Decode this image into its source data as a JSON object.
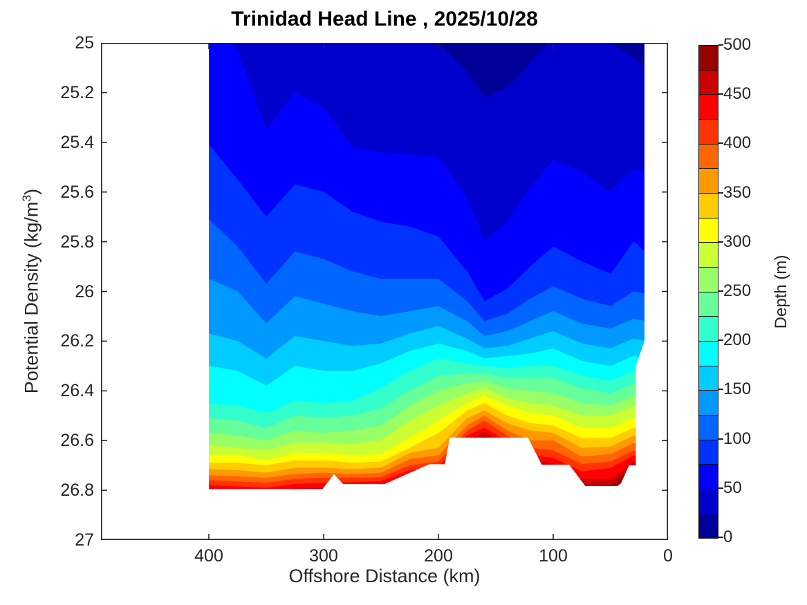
{
  "title": "Trinidad Head Line , 2025/10/28",
  "axis_color": "#262626",
  "chart_data": {
    "type": "filled_contour",
    "title": "Trinidad Head Line , 2025/10/28",
    "xlabel": "Offshore Distance (km)",
    "ylabel": "Potential Density (kg/m³)",
    "ylabel_parts": {
      "main": "Potential Density (kg/m",
      "sup": "3",
      "end": ")"
    },
    "x_axis": {
      "min": 0,
      "max": 494,
      "reversed": true,
      "ticks": [
        400,
        300,
        200,
        100,
        0
      ]
    },
    "y_axis": {
      "min": 25,
      "max": 27,
      "increases_downward": true,
      "ticks": [
        25,
        25.2,
        25.4,
        25.6,
        25.8,
        26,
        26.2,
        26.4,
        26.6,
        26.8,
        27
      ],
      "tick_labels": [
        "25",
        "25.2",
        "25.4",
        "25.6",
        "25.8",
        "26",
        "26.2",
        "26.4",
        "26.6",
        "26.8",
        "27"
      ]
    },
    "colorbar": {
      "label": "Depth (m)",
      "min": 0,
      "max": 500,
      "band_step": 25,
      "ticks": [
        0,
        50,
        100,
        150,
        200,
        250,
        300,
        350,
        400,
        450,
        500
      ],
      "colors": [
        "#000099",
        "#0000CC",
        "#0000FF",
        "#0033FF",
        "#0066FF",
        "#0099FF",
        "#00CCFF",
        "#00FFFF",
        "#33FFCC",
        "#66FF99",
        "#99FF66",
        "#CCFF33",
        "#FFFF00",
        "#FFCC00",
        "#FF9900",
        "#FF6600",
        "#FF3300",
        "#FF0000",
        "#CC0000",
        "#990000"
      ]
    },
    "levels_m": [
      25,
      50,
      75,
      100,
      125,
      150,
      175,
      200,
      225,
      250,
      275,
      300,
      325,
      350,
      375,
      400,
      425,
      450,
      475,
      500
    ],
    "stations_km": [
      400,
      375,
      350,
      325,
      300,
      275,
      250,
      225,
      200,
      175,
      160,
      140,
      120,
      100,
      75,
      50,
      30,
      20
    ],
    "contour_density_by_level": [
      [
        24.85,
        24.88,
        24.92,
        24.9,
        24.9,
        24.9,
        24.93,
        24.96,
        25.0,
        25.12,
        25.22,
        25.18,
        25.08,
        24.98,
        24.95,
        25.0,
        25.06,
        25.1
      ],
      [
        24.9,
        25.03,
        25.35,
        25.2,
        25.26,
        25.42,
        25.44,
        25.45,
        25.46,
        25.62,
        25.8,
        25.72,
        25.58,
        25.47,
        25.52,
        25.6,
        25.51,
        25.52
      ],
      [
        25.41,
        25.55,
        25.7,
        25.57,
        25.6,
        25.68,
        25.72,
        25.74,
        25.78,
        25.92,
        26.04,
        25.99,
        25.9,
        25.82,
        25.88,
        25.93,
        25.8,
        25.84
      ],
      [
        25.71,
        25.82,
        25.97,
        25.84,
        25.87,
        25.92,
        25.95,
        25.95,
        25.95,
        26.04,
        26.12,
        26.09,
        26.03,
        25.98,
        26.03,
        26.06,
        26.0,
        26.01
      ],
      [
        25.95,
        26.0,
        26.13,
        26.02,
        26.05,
        26.08,
        26.1,
        26.08,
        26.06,
        26.12,
        26.18,
        26.16,
        26.12,
        26.08,
        26.13,
        26.15,
        26.11,
        26.12
      ],
      [
        26.17,
        26.2,
        26.27,
        26.18,
        26.2,
        26.22,
        26.21,
        26.17,
        26.14,
        26.19,
        26.23,
        26.22,
        26.19,
        26.16,
        26.21,
        26.23,
        26.19,
        26.2
      ],
      [
        26.3,
        26.32,
        26.38,
        26.3,
        26.32,
        26.32,
        26.29,
        26.24,
        26.21,
        26.24,
        26.27,
        26.26,
        26.25,
        26.23,
        26.28,
        26.3,
        26.26,
        26.27
      ],
      [
        26.45,
        26.46,
        26.49,
        26.44,
        26.45,
        26.44,
        26.39,
        26.32,
        26.27,
        26.29,
        26.3,
        26.31,
        26.3,
        26.3,
        26.34,
        26.36,
        26.32,
        26.33
      ],
      [
        26.51,
        26.52,
        26.55,
        26.5,
        26.51,
        26.5,
        26.47,
        26.4,
        26.34,
        26.33,
        26.33,
        26.35,
        26.35,
        26.35,
        26.39,
        26.41,
        26.37,
        26.38
      ],
      [
        26.57,
        26.58,
        26.6,
        26.56,
        26.57,
        26.56,
        26.54,
        26.46,
        26.4,
        26.37,
        26.36,
        26.39,
        26.4,
        26.41,
        26.45,
        26.46,
        26.42,
        26.43
      ],
      [
        26.62,
        26.63,
        26.64,
        26.61,
        26.61,
        26.615,
        26.6,
        26.52,
        26.46,
        26.41,
        26.39,
        26.43,
        26.45,
        26.46,
        26.5,
        26.5,
        26.46,
        26.47
      ],
      [
        26.66,
        26.66,
        26.68,
        26.65,
        26.65,
        26.66,
        26.655,
        26.59,
        26.52,
        26.45,
        26.42,
        26.46,
        26.49,
        26.5,
        26.55,
        26.55,
        26.51,
        26.51
      ],
      [
        26.69,
        26.69,
        26.7,
        26.68,
        26.68,
        26.69,
        26.685,
        26.63,
        26.57,
        26.48,
        26.45,
        26.5,
        26.53,
        26.54,
        26.59,
        26.59,
        26.55,
        26.55
      ],
      [
        26.715,
        26.72,
        26.73,
        26.71,
        26.71,
        26.715,
        26.71,
        26.65,
        26.63,
        26.51,
        26.48,
        26.53,
        26.56,
        26.57,
        26.63,
        26.625,
        26.58,
        26.59
      ],
      [
        26.74,
        26.745,
        26.75,
        26.735,
        26.73,
        26.735,
        26.73,
        26.675,
        26.66,
        26.54,
        26.5,
        26.56,
        26.6,
        26.6,
        26.665,
        26.655,
        26.61,
        26.62
      ],
      [
        26.76,
        26.765,
        26.77,
        26.755,
        26.75,
        26.75,
        26.748,
        26.7,
        26.685,
        26.56,
        26.52,
        26.58,
        26.63,
        26.64,
        26.695,
        26.685,
        26.64,
        26.65
      ],
      [
        26.78,
        26.785,
        26.79,
        26.775,
        26.77,
        26.768,
        26.763,
        26.72,
        26.705,
        26.58,
        26.548,
        26.605,
        26.66,
        26.67,
        26.725,
        26.71,
        26.66,
        26.67
      ],
      [
        26.795,
        26.8,
        26.805,
        26.795,
        26.79,
        26.78,
        26.776,
        26.74,
        26.725,
        26.6,
        26.566,
        26.62,
        26.685,
        26.69,
        26.755,
        26.755,
        26.685,
        26.69
      ],
      [
        26.82,
        26.83,
        26.83,
        26.82,
        26.81,
        26.795,
        26.79,
        26.76,
        26.745,
        26.62,
        26.582,
        26.64,
        26.71,
        26.72,
        26.785,
        26.78,
        26.71,
        26.71
      ],
      [
        26.85,
        26.86,
        26.86,
        26.85,
        26.84,
        26.81,
        26.805,
        26.78,
        26.765,
        26.64,
        26.596,
        26.66,
        26.73,
        26.75,
        26.81,
        26.805,
        26.73,
        26.73
      ]
    ],
    "data_boundary_km_sigma": [
      [
        400,
        24.5
      ],
      [
        20.5,
        24.5
      ],
      [
        20.5,
        26.2
      ],
      [
        28,
        26.3
      ],
      [
        28,
        26.7
      ],
      [
        34,
        26.7
      ],
      [
        42,
        26.783
      ],
      [
        72,
        26.783
      ],
      [
        86,
        26.697
      ],
      [
        110,
        26.697
      ],
      [
        122,
        26.588
      ],
      [
        190,
        26.588
      ],
      [
        194.5,
        26.695
      ],
      [
        208,
        26.695
      ],
      [
        247,
        26.775
      ],
      [
        283,
        26.775
      ],
      [
        291,
        26.735
      ],
      [
        301,
        26.795
      ],
      [
        400,
        26.795
      ]
    ]
  }
}
